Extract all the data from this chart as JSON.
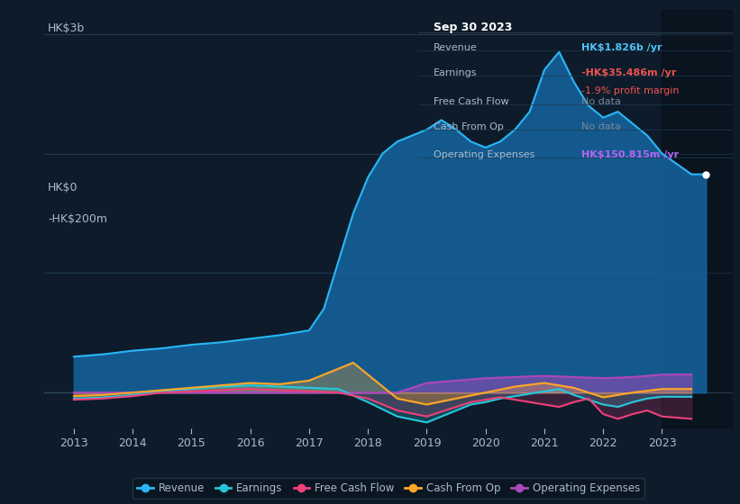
{
  "bg_color": "#0d1b2a",
  "plot_bg_color": "#0d1b2a",
  "grid_color": "#1e3a4f",
  "title_box": {
    "date": "Sep 30 2023",
    "rows": [
      {
        "label": "Revenue",
        "value": "HK$1.826b /yr",
        "value_color": "#4fc3f7",
        "extra": null
      },
      {
        "label": "Earnings",
        "value": "-HK$35.486m /yr",
        "value_color": "#ef5350",
        "extra": "-1.9% profit margin",
        "extra_color": "#ef5350"
      },
      {
        "label": "Free Cash Flow",
        "value": "No data",
        "value_color": "#7a8a99",
        "extra": null
      },
      {
        "label": "Cash From Op",
        "value": "No data",
        "value_color": "#7a8a99",
        "extra": null
      },
      {
        "label": "Operating Expenses",
        "value": "HK$150.815m /yr",
        "value_color": "#b565f3",
        "extra": null
      }
    ],
    "box_bg": "#0a1520",
    "box_border": "#2a3a4a",
    "label_color": "#aabbcc",
    "date_color": "#ffffff"
  },
  "ylabel_top": "HK$3b",
  "ylabel_zero": "HK$0",
  "ylabel_neg": "-HK$200m",
  "ylim": [
    -300000000,
    3200000000
  ],
  "yticks": [
    0,
    1000000000,
    2000000000,
    3000000000
  ],
  "xlim_start": 2012.5,
  "xlim_end": 2024.2,
  "xticks": [
    2013,
    2014,
    2015,
    2016,
    2017,
    2018,
    2019,
    2020,
    2021,
    2022,
    2023
  ],
  "series": {
    "revenue": {
      "color": "#29b6f6",
      "fill": true,
      "fill_color": "#1565a0",
      "fill_alpha": 0.7,
      "label": "Revenue",
      "dot_color": "#ffffff",
      "years": [
        2013,
        2013.5,
        2014,
        2014.5,
        2015,
        2015.5,
        2016,
        2016.5,
        2017,
        2017.25,
        2017.5,
        2017.75,
        2018,
        2018.25,
        2018.5,
        2018.75,
        2019,
        2019.25,
        2019.5,
        2019.75,
        2020,
        2020.25,
        2020.5,
        2020.75,
        2021,
        2021.25,
        2021.5,
        2021.75,
        2022,
        2022.25,
        2022.5,
        2022.75,
        2023,
        2023.5,
        2023.75
      ],
      "values": [
        300000000,
        320000000,
        350000000,
        370000000,
        400000000,
        420000000,
        450000000,
        480000000,
        520000000,
        700000000,
        1100000000,
        1500000000,
        1800000000,
        2000000000,
        2100000000,
        2150000000,
        2200000000,
        2280000000,
        2200000000,
        2100000000,
        2050000000,
        2100000000,
        2200000000,
        2350000000,
        2700000000,
        2850000000,
        2600000000,
        2400000000,
        2300000000,
        2350000000,
        2250000000,
        2150000000,
        2000000000,
        1826000000,
        1826000000
      ]
    },
    "earnings": {
      "color": "#26c6da",
      "fill": true,
      "fill_alpha": 0.3,
      "label": "Earnings",
      "years": [
        2013,
        2013.5,
        2014,
        2014.5,
        2015,
        2015.5,
        2016,
        2016.5,
        2017,
        2017.5,
        2018,
        2018.5,
        2019,
        2019.25,
        2019.5,
        2019.75,
        2020,
        2020.25,
        2020.5,
        2020.75,
        2021,
        2021.25,
        2021.5,
        2021.75,
        2022,
        2022.25,
        2022.5,
        2022.75,
        2023,
        2023.5
      ],
      "values": [
        -50000000,
        -40000000,
        -20000000,
        10000000,
        30000000,
        50000000,
        60000000,
        50000000,
        40000000,
        30000000,
        -80000000,
        -200000000,
        -250000000,
        -200000000,
        -150000000,
        -100000000,
        -80000000,
        -50000000,
        -30000000,
        -10000000,
        10000000,
        30000000,
        -20000000,
        -60000000,
        -100000000,
        -120000000,
        -80000000,
        -50000000,
        -35000000,
        -35486000
      ]
    },
    "free_cash_flow": {
      "color": "#ec407a",
      "fill": true,
      "fill_alpha": 0.2,
      "label": "Free Cash Flow",
      "years": [
        2013,
        2013.5,
        2014,
        2014.5,
        2015,
        2015.5,
        2016,
        2016.5,
        2017,
        2017.5,
        2018,
        2018.5,
        2019,
        2019.25,
        2019.5,
        2019.75,
        2020,
        2020.25,
        2020.5,
        2020.75,
        2021,
        2021.25,
        2021.5,
        2021.75,
        2022,
        2022.25,
        2022.5,
        2022.75,
        2023,
        2023.5
      ],
      "values": [
        -60000000,
        -50000000,
        -30000000,
        0,
        10000000,
        20000000,
        30000000,
        20000000,
        10000000,
        0,
        -50000000,
        -150000000,
        -200000000,
        -160000000,
        -120000000,
        -80000000,
        -60000000,
        -40000000,
        -60000000,
        -80000000,
        -100000000,
        -120000000,
        -80000000,
        -50000000,
        -180000000,
        -220000000,
        -180000000,
        -150000000,
        -200000000,
        -220000000
      ]
    },
    "cash_from_op": {
      "color": "#ffa726",
      "fill": true,
      "fill_alpha": 0.3,
      "label": "Cash From Op",
      "years": [
        2013,
        2013.5,
        2014,
        2014.5,
        2015,
        2015.5,
        2016,
        2016.5,
        2017,
        2017.25,
        2017.5,
        2017.75,
        2018,
        2018.25,
        2018.5,
        2019,
        2019.5,
        2020,
        2020.5,
        2021,
        2021.5,
        2022,
        2022.5,
        2023,
        2023.5
      ],
      "values": [
        -30000000,
        -20000000,
        0,
        20000000,
        40000000,
        60000000,
        80000000,
        70000000,
        100000000,
        150000000,
        200000000,
        250000000,
        150000000,
        50000000,
        -50000000,
        -100000000,
        -50000000,
        0,
        50000000,
        80000000,
        40000000,
        -40000000,
        0,
        30000000,
        30000000
      ]
    },
    "operating_expenses": {
      "color": "#ab47bc",
      "fill": true,
      "fill_alpha": 0.4,
      "label": "Operating Expenses",
      "years": [
        2013,
        2014,
        2015,
        2016,
        2017,
        2018,
        2018.5,
        2019,
        2019.5,
        2020,
        2020.5,
        2021,
        2021.5,
        2022,
        2022.5,
        2023,
        2023.5
      ],
      "values": [
        0,
        0,
        0,
        0,
        0,
        0,
        0,
        80000000,
        100000000,
        120000000,
        130000000,
        140000000,
        130000000,
        120000000,
        130000000,
        150000000,
        150815000
      ]
    }
  },
  "legend": [
    {
      "label": "Revenue",
      "color": "#29b6f6"
    },
    {
      "label": "Earnings",
      "color": "#26c6da"
    },
    {
      "label": "Free Cash Flow",
      "color": "#ec407a"
    },
    {
      "label": "Cash From Op",
      "color": "#ffa726"
    },
    {
      "label": "Operating Expenses",
      "color": "#ab47bc"
    }
  ]
}
